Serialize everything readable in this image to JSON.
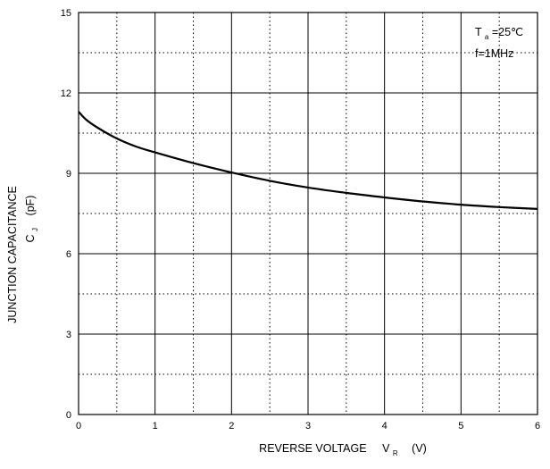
{
  "chart_data": {
    "type": "line",
    "xlabel": {
      "main": "REVERSE VOLTAGE",
      "symbol": "V",
      "subscript": "R",
      "unit": "(V)"
    },
    "ylabel": {
      "line1": "JUNCTION CAPACITANCE",
      "symbol": "C",
      "subscript": "J",
      "unit": "(pF)"
    },
    "xlim": [
      0,
      6
    ],
    "ylim": [
      0,
      15
    ],
    "x_ticks": [
      "0",
      "1",
      "2",
      "3",
      "4",
      "5",
      "6"
    ],
    "y_ticks": [
      "0",
      "3",
      "6",
      "9",
      "12",
      "15"
    ],
    "grid": {
      "major": "solid",
      "minor": "dotted"
    },
    "annotations": {
      "temp_symbol": "T",
      "temp_subscript": "a",
      "temp_value": "=25℃",
      "freq": "f=1MHz"
    },
    "series": [
      {
        "x": [
          0,
          0.1,
          0.25,
          0.5,
          0.75,
          1.0,
          1.5,
          2.0,
          2.5,
          3.0,
          3.5,
          4.0,
          4.5,
          5.0,
          5.5,
          6.0
        ],
        "y": [
          11.3,
          11.0,
          10.7,
          10.3,
          10.0,
          9.78,
          9.38,
          9.03,
          8.72,
          8.47,
          8.27,
          8.1,
          7.95,
          7.83,
          7.74,
          7.67
        ]
      }
    ]
  }
}
